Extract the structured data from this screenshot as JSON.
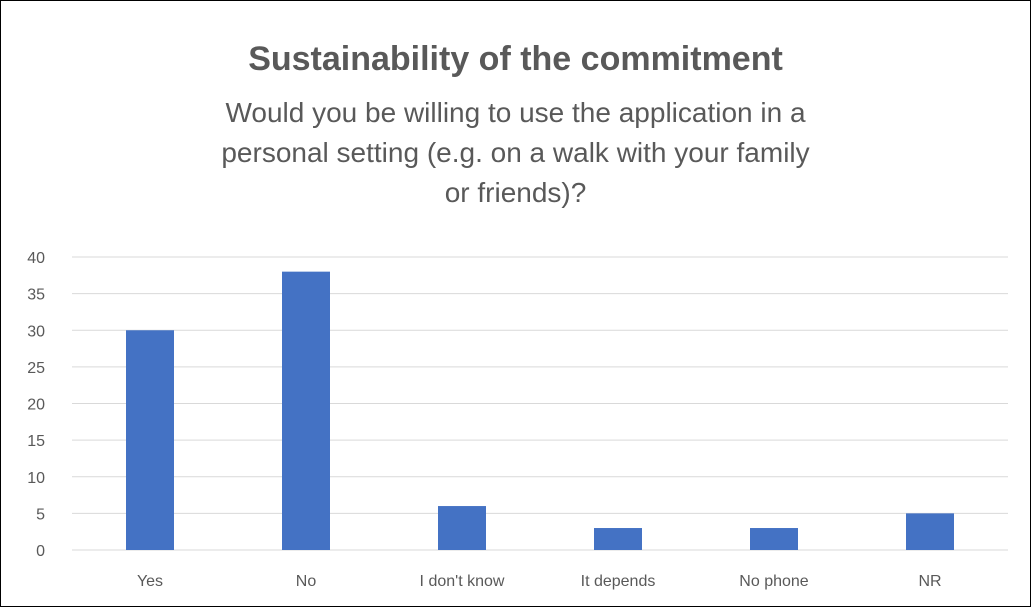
{
  "chart_data": {
    "type": "bar",
    "title": "Sustainability of the commitment",
    "subtitle": "Would you be willing to use the application in a personal setting (e.g. on a walk with your family or friends)?",
    "categories": [
      "Yes",
      "No",
      "I don't know",
      "It depends",
      "No phone",
      "NR"
    ],
    "values": [
      30,
      38,
      6,
      3,
      3,
      5
    ],
    "ylim": [
      0,
      40
    ],
    "yticks": [
      0,
      5,
      10,
      15,
      20,
      25,
      30,
      35,
      40
    ],
    "xlabel": "",
    "ylabel": "",
    "grid": true,
    "legend": "none",
    "bar_color": "#4472c4",
    "grid_color": "#d9d9d9",
    "text_color": "#595959"
  }
}
